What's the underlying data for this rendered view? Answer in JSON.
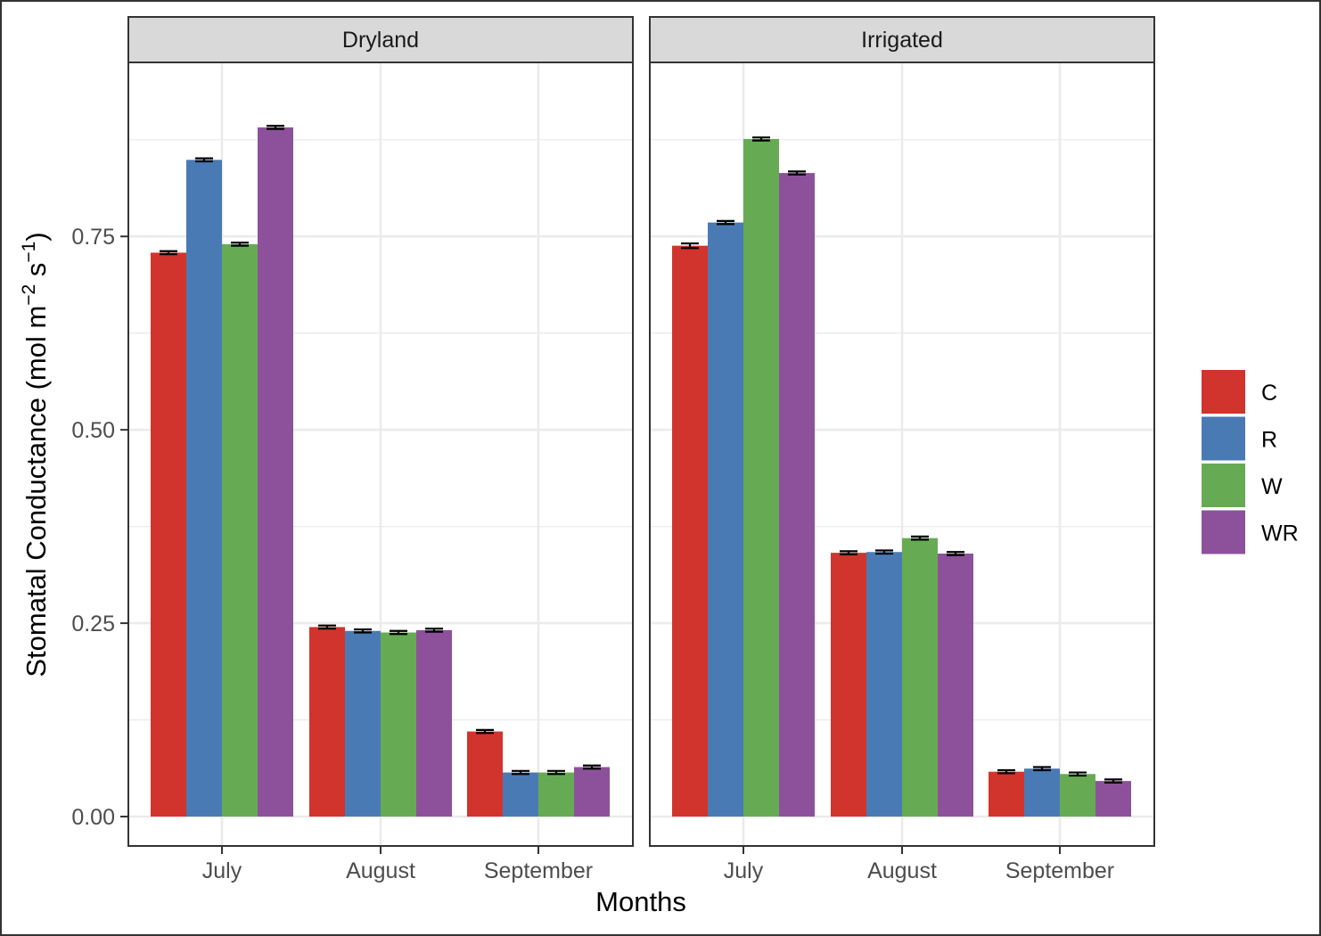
{
  "chart_data": {
    "type": "bar",
    "layout": "faceted grouped bars with error bars",
    "x_label": "Months",
    "y_label": {
      "prefix": "Stomatal Conductance (mol m",
      "sup1": "−2",
      "middle": " s",
      "sup2": "−1",
      "suffix": ")"
    },
    "categories": [
      "July",
      "August",
      "September"
    ],
    "y_ticks": [
      "0.00",
      "0.25",
      "0.50",
      "0.75"
    ],
    "ylim": [
      -0.038,
      0.975
    ],
    "grid": true,
    "legend": {
      "position": "right",
      "entries": [
        {
          "label": "C",
          "color": "#D1342C"
        },
        {
          "label": "R",
          "color": "#4A7AB3"
        },
        {
          "label": "W",
          "color": "#66AB54"
        },
        {
          "label": "WR",
          "color": "#8D519C"
        }
      ]
    },
    "facets": [
      {
        "title": "Dryland",
        "series": [
          {
            "name": "C",
            "values": [
              0.729,
              0.245,
              0.11
            ],
            "errors": [
              0.002,
              0.002,
              0.002
            ]
          },
          {
            "name": "R",
            "values": [
              0.849,
              0.24,
              0.057
            ],
            "errors": [
              0.002,
              0.002,
              0.002
            ]
          },
          {
            "name": "W",
            "values": [
              0.74,
              0.238,
              0.057
            ],
            "errors": [
              0.002,
              0.002,
              0.002
            ]
          },
          {
            "name": "WR",
            "values": [
              0.891,
              0.241,
              0.064
            ],
            "errors": [
              0.002,
              0.002,
              0.002
            ]
          }
        ]
      },
      {
        "title": "Irrigated",
        "series": [
          {
            "name": "C",
            "values": [
              0.738,
              0.341,
              0.058
            ],
            "errors": [
              0.003,
              0.002,
              0.002
            ]
          },
          {
            "name": "R",
            "values": [
              0.768,
              0.342,
              0.062
            ],
            "errors": [
              0.002,
              0.002,
              0.002
            ]
          },
          {
            "name": "W",
            "values": [
              0.876,
              0.36,
              0.055
            ],
            "errors": [
              0.002,
              0.002,
              0.002
            ]
          },
          {
            "name": "WR",
            "values": [
              0.832,
              0.34,
              0.046
            ],
            "errors": [
              0.002,
              0.002,
              0.002
            ]
          }
        ]
      }
    ]
  }
}
